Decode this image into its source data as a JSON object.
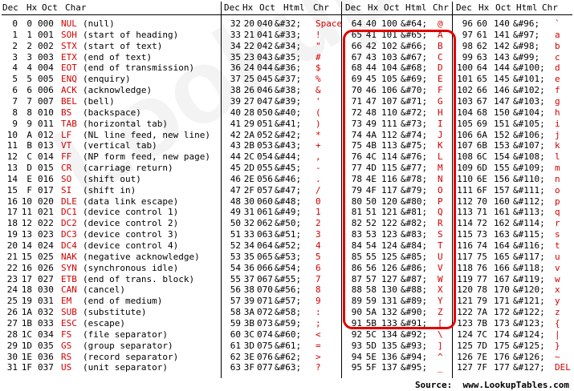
{
  "headers": {
    "control": [
      "Dec",
      "Hx",
      "Oct",
      "Char"
    ],
    "printable": [
      "Dec",
      "Hx",
      "Oct",
      "Html",
      "Chr"
    ]
  },
  "control_rows": [
    [
      "0",
      "0",
      "000",
      "NUL",
      "(null)"
    ],
    [
      "1",
      "1",
      "001",
      "SOH",
      "(start of heading)"
    ],
    [
      "2",
      "2",
      "002",
      "STX",
      "(start of text)"
    ],
    [
      "3",
      "3",
      "003",
      "ETX",
      "(end of text)"
    ],
    [
      "4",
      "4",
      "004",
      "EOT",
      "(end of transmission)"
    ],
    [
      "5",
      "5",
      "005",
      "ENQ",
      "(enquiry)"
    ],
    [
      "6",
      "6",
      "006",
      "ACK",
      "(acknowledge)"
    ],
    [
      "7",
      "7",
      "007",
      "BEL",
      "(bell)"
    ],
    [
      "8",
      "8",
      "010",
      "BS",
      "(backspace)"
    ],
    [
      "9",
      "9",
      "011",
      "TAB",
      "(horizontal tab)"
    ],
    [
      "10",
      "A",
      "012",
      "LF",
      "(NL line feed, new line)"
    ],
    [
      "11",
      "B",
      "013",
      "VT",
      "(vertical tab)"
    ],
    [
      "12",
      "C",
      "014",
      "FF",
      "(NP form feed, new page)"
    ],
    [
      "13",
      "D",
      "015",
      "CR",
      "(carriage return)"
    ],
    [
      "14",
      "E",
      "016",
      "SO",
      "(shift out)"
    ],
    [
      "15",
      "F",
      "017",
      "SI",
      "(shift in)"
    ],
    [
      "16",
      "10",
      "020",
      "DLE",
      "(data link escape)"
    ],
    [
      "17",
      "11",
      "021",
      "DC1",
      "(device control 1)"
    ],
    [
      "18",
      "12",
      "022",
      "DC2",
      "(device control 2)"
    ],
    [
      "19",
      "13",
      "023",
      "DC3",
      "(device control 3)"
    ],
    [
      "20",
      "14",
      "024",
      "DC4",
      "(device control 4)"
    ],
    [
      "21",
      "15",
      "025",
      "NAK",
      "(negative acknowledge)"
    ],
    [
      "22",
      "16",
      "026",
      "SYN",
      "(synchronous idle)"
    ],
    [
      "23",
      "17",
      "027",
      "ETB",
      "(end of trans. block)"
    ],
    [
      "24",
      "18",
      "030",
      "CAN",
      "(cancel)"
    ],
    [
      "25",
      "19",
      "031",
      "EM",
      "(end of medium)"
    ],
    [
      "26",
      "1A",
      "032",
      "SUB",
      "(substitute)"
    ],
    [
      "27",
      "1B",
      "033",
      "ESC",
      "(escape)"
    ],
    [
      "28",
      "1C",
      "034",
      "FS",
      "(file separator)"
    ],
    [
      "29",
      "1D",
      "035",
      "GS",
      "(group separator)"
    ],
    [
      "30",
      "1E",
      "036",
      "RS",
      "(record separator)"
    ],
    [
      "31",
      "1F",
      "037",
      "US",
      "(unit separator)"
    ]
  ],
  "block2_rows": [
    [
      "32",
      "20",
      "040",
      "&#32;",
      "Space"
    ],
    [
      "33",
      "21",
      "041",
      "&#33;",
      "!"
    ],
    [
      "34",
      "22",
      "042",
      "&#34;",
      "\""
    ],
    [
      "35",
      "23",
      "043",
      "&#35;",
      "#"
    ],
    [
      "36",
      "24",
      "044",
      "&#36;",
      "$"
    ],
    [
      "37",
      "25",
      "045",
      "&#37;",
      "%"
    ],
    [
      "38",
      "26",
      "046",
      "&#38;",
      "&"
    ],
    [
      "39",
      "27",
      "047",
      "&#39;",
      "'"
    ],
    [
      "40",
      "28",
      "050",
      "&#40;",
      "("
    ],
    [
      "41",
      "29",
      "051",
      "&#41;",
      ")"
    ],
    [
      "42",
      "2A",
      "052",
      "&#42;",
      "*"
    ],
    [
      "43",
      "2B",
      "053",
      "&#43;",
      "+"
    ],
    [
      "44",
      "2C",
      "054",
      "&#44;",
      ","
    ],
    [
      "45",
      "2D",
      "055",
      "&#45;",
      "-"
    ],
    [
      "46",
      "2E",
      "056",
      "&#46;",
      "."
    ],
    [
      "47",
      "2F",
      "057",
      "&#47;",
      "/"
    ],
    [
      "48",
      "30",
      "060",
      "&#48;",
      "0"
    ],
    [
      "49",
      "31",
      "061",
      "&#49;",
      "1"
    ],
    [
      "50",
      "32",
      "062",
      "&#50;",
      "2"
    ],
    [
      "51",
      "33",
      "063",
      "&#51;",
      "3"
    ],
    [
      "52",
      "34",
      "064",
      "&#52;",
      "4"
    ],
    [
      "53",
      "35",
      "065",
      "&#53;",
      "5"
    ],
    [
      "54",
      "36",
      "066",
      "&#54;",
      "6"
    ],
    [
      "55",
      "37",
      "067",
      "&#55;",
      "7"
    ],
    [
      "56",
      "38",
      "070",
      "&#56;",
      "8"
    ],
    [
      "57",
      "39",
      "071",
      "&#57;",
      "9"
    ],
    [
      "58",
      "3A",
      "072",
      "&#58;",
      ":"
    ],
    [
      "59",
      "3B",
      "073",
      "&#59;",
      ";"
    ],
    [
      "60",
      "3C",
      "074",
      "&#60;",
      "<"
    ],
    [
      "61",
      "3D",
      "075",
      "&#61;",
      "="
    ],
    [
      "62",
      "3E",
      "076",
      "&#62;",
      ">"
    ],
    [
      "63",
      "3F",
      "077",
      "&#63;",
      "?"
    ]
  ],
  "block3_rows": [
    [
      "64",
      "40",
      "100",
      "&#64;",
      "@"
    ],
    [
      "65",
      "41",
      "101",
      "&#65;",
      "A"
    ],
    [
      "66",
      "42",
      "102",
      "&#66;",
      "B"
    ],
    [
      "67",
      "43",
      "103",
      "&#67;",
      "C"
    ],
    [
      "68",
      "44",
      "104",
      "&#68;",
      "D"
    ],
    [
      "69",
      "45",
      "105",
      "&#69;",
      "E"
    ],
    [
      "70",
      "46",
      "106",
      "&#70;",
      "F"
    ],
    [
      "71",
      "47",
      "107",
      "&#71;",
      "G"
    ],
    [
      "72",
      "48",
      "110",
      "&#72;",
      "H"
    ],
    [
      "73",
      "49",
      "111",
      "&#73;",
      "I"
    ],
    [
      "74",
      "4A",
      "112",
      "&#74;",
      "J"
    ],
    [
      "75",
      "4B",
      "113",
      "&#75;",
      "K"
    ],
    [
      "76",
      "4C",
      "114",
      "&#76;",
      "L"
    ],
    [
      "77",
      "4D",
      "115",
      "&#77;",
      "M"
    ],
    [
      "78",
      "4E",
      "116",
      "&#78;",
      "N"
    ],
    [
      "79",
      "4F",
      "117",
      "&#79;",
      "O"
    ],
    [
      "80",
      "50",
      "120",
      "&#80;",
      "P"
    ],
    [
      "81",
      "51",
      "121",
      "&#81;",
      "Q"
    ],
    [
      "82",
      "52",
      "122",
      "&#82;",
      "R"
    ],
    [
      "83",
      "53",
      "123",
      "&#83;",
      "S"
    ],
    [
      "84",
      "54",
      "124",
      "&#84;",
      "T"
    ],
    [
      "85",
      "55",
      "125",
      "&#85;",
      "U"
    ],
    [
      "86",
      "56",
      "126",
      "&#86;",
      "V"
    ],
    [
      "87",
      "57",
      "127",
      "&#87;",
      "W"
    ],
    [
      "88",
      "58",
      "130",
      "&#88;",
      "X"
    ],
    [
      "89",
      "59",
      "131",
      "&#89;",
      "Y"
    ],
    [
      "90",
      "5A",
      "132",
      "&#90;",
      "Z"
    ],
    [
      "91",
      "5B",
      "133",
      "&#91;",
      "["
    ],
    [
      "92",
      "5C",
      "134",
      "&#92;",
      "\\"
    ],
    [
      "93",
      "5D",
      "135",
      "&#93;",
      "]"
    ],
    [
      "94",
      "5E",
      "136",
      "&#94;",
      "^"
    ],
    [
      "95",
      "5F",
      "137",
      "&#95;",
      "_"
    ]
  ],
  "block4_rows": [
    [
      "96",
      "60",
      "140",
      "&#96;",
      "`"
    ],
    [
      "97",
      "61",
      "141",
      "&#97;",
      "a"
    ],
    [
      "98",
      "62",
      "142",
      "&#98;",
      "b"
    ],
    [
      "99",
      "63",
      "143",
      "&#99;",
      "c"
    ],
    [
      "100",
      "64",
      "144",
      "&#100;",
      "d"
    ],
    [
      "101",
      "65",
      "145",
      "&#101;",
      "e"
    ],
    [
      "102",
      "66",
      "146",
      "&#102;",
      "f"
    ],
    [
      "103",
      "67",
      "147",
      "&#103;",
      "g"
    ],
    [
      "104",
      "68",
      "150",
      "&#104;",
      "h"
    ],
    [
      "105",
      "69",
      "151",
      "&#105;",
      "i"
    ],
    [
      "106",
      "6A",
      "152",
      "&#106;",
      "j"
    ],
    [
      "107",
      "6B",
      "153",
      "&#107;",
      "k"
    ],
    [
      "108",
      "6C",
      "154",
      "&#108;",
      "l"
    ],
    [
      "109",
      "6D",
      "155",
      "&#109;",
      "m"
    ],
    [
      "110",
      "6E",
      "156",
      "&#110;",
      "n"
    ],
    [
      "111",
      "6F",
      "157",
      "&#111;",
      "o"
    ],
    [
      "112",
      "70",
      "160",
      "&#112;",
      "p"
    ],
    [
      "113",
      "71",
      "161",
      "&#113;",
      "q"
    ],
    [
      "114",
      "72",
      "162",
      "&#114;",
      "r"
    ],
    [
      "115",
      "73",
      "163",
      "&#115;",
      "s"
    ],
    [
      "116",
      "74",
      "164",
      "&#116;",
      "t"
    ],
    [
      "117",
      "75",
      "165",
      "&#117;",
      "u"
    ],
    [
      "118",
      "76",
      "166",
      "&#118;",
      "v"
    ],
    [
      "119",
      "77",
      "167",
      "&#119;",
      "w"
    ],
    [
      "120",
      "78",
      "170",
      "&#120;",
      "x"
    ],
    [
      "121",
      "79",
      "171",
      "&#121;",
      "y"
    ],
    [
      "122",
      "7A",
      "172",
      "&#122;",
      "z"
    ],
    [
      "123",
      "7B",
      "173",
      "&#123;",
      "{"
    ],
    [
      "124",
      "7C",
      "174",
      "&#124;",
      "|"
    ],
    [
      "125",
      "7D",
      "175",
      "&#125;",
      "}"
    ],
    [
      "126",
      "7E",
      "176",
      "&#126;",
      "~"
    ],
    [
      "127",
      "7F",
      "177",
      "&#127;",
      "DEL"
    ]
  ],
  "source_label": "Source:  www.LookupTables.com",
  "watermark": "LookupTables.com",
  "colors": {
    "accent": "#d40000",
    "highlight": "#e00000"
  }
}
